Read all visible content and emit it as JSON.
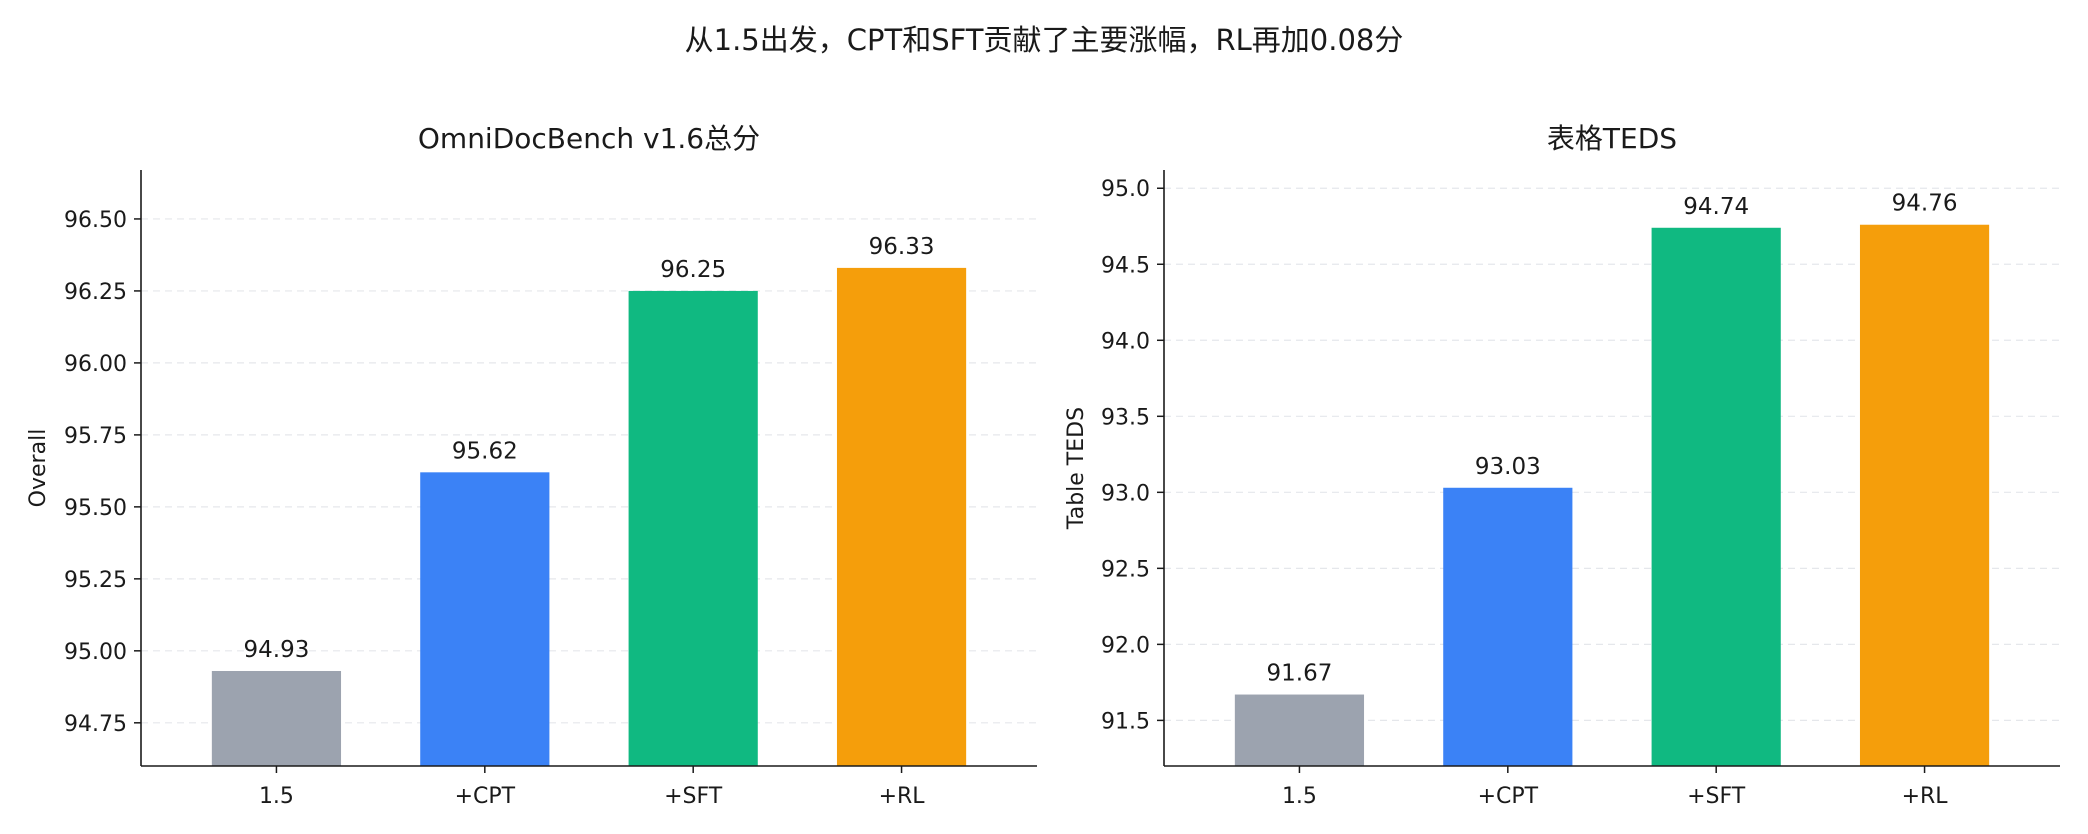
{
  "figure": {
    "title": "从1.5出发，CPT和SFT贡献了主要涨幅，RL再加0.08分"
  },
  "chart_data": [
    {
      "type": "bar",
      "title": "OmniDocBench v1.6总分",
      "xlabel": "",
      "ylabel": "Overall",
      "categories": [
        "1.5",
        "+CPT",
        "+SFT",
        "+RL"
      ],
      "values": [
        94.93,
        95.62,
        96.25,
        96.33
      ],
      "value_labels": [
        "94.93",
        "95.62",
        "96.25",
        "96.33"
      ],
      "colors": [
        "#9ca3af",
        "#3b82f6",
        "#10b981",
        "#f59e0b"
      ],
      "ylim": [
        94.6,
        96.67
      ],
      "yticks": [
        94.75,
        95.0,
        95.25,
        95.5,
        95.75,
        96.0,
        96.25,
        96.5
      ],
      "ytick_labels": [
        "94.75",
        "95.00",
        "95.25",
        "95.50",
        "95.75",
        "96.00",
        "96.25",
        "96.50"
      ],
      "grid": "y-dashed",
      "legend": "none"
    },
    {
      "type": "bar",
      "title": "表格TEDS",
      "xlabel": "",
      "ylabel": "Table TEDS",
      "categories": [
        "1.5",
        "+CPT",
        "+SFT",
        "+RL"
      ],
      "values": [
        91.67,
        93.03,
        94.74,
        94.76
      ],
      "value_labels": [
        "91.67",
        "93.03",
        "94.74",
        "94.76"
      ],
      "colors": [
        "#9ca3af",
        "#3b82f6",
        "#10b981",
        "#f59e0b"
      ],
      "ylim": [
        91.2,
        95.12
      ],
      "yticks": [
        91.5,
        92.0,
        92.5,
        93.0,
        93.5,
        94.0,
        94.5,
        95.0
      ],
      "ytick_labels": [
        "91.5",
        "92.0",
        "92.5",
        "93.0",
        "93.5",
        "94.0",
        "94.5",
        "95.0"
      ],
      "grid": "y-dashed",
      "legend": "none"
    }
  ]
}
